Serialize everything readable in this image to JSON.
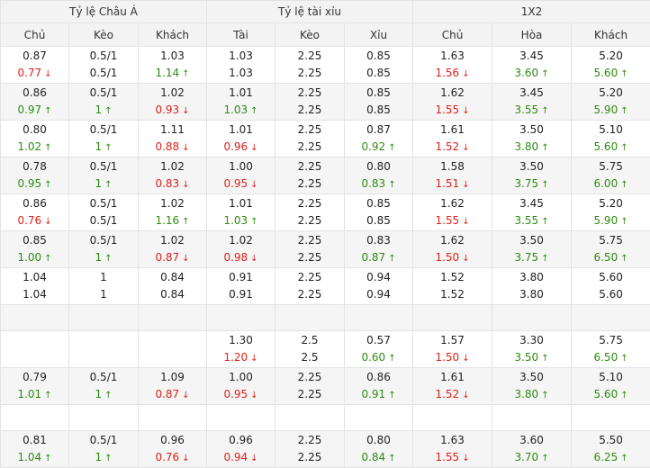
{
  "groups": [
    "Tỷ lệ Châu Á",
    "Tỷ lệ tài xỉu",
    "1X2"
  ],
  "columns": [
    "Chủ",
    "Kèo",
    "Khách",
    "Tài",
    "Kèo",
    "Xỉu",
    "Chủ",
    "Hòa",
    "Khách"
  ],
  "arrows": {
    "up": "↑",
    "down": "↓"
  },
  "colors": {
    "up": "#2e8b10",
    "down": "#e0211b"
  },
  "rows": [
    {
      "type": "data",
      "cells": [
        [
          {
            "v": "0.87"
          },
          {
            "v": "0.77",
            "d": "down"
          }
        ],
        [
          {
            "v": "0.5/1"
          },
          {
            "v": "0.5/1"
          }
        ],
        [
          {
            "v": "1.03"
          },
          {
            "v": "1.14",
            "d": "up"
          }
        ],
        [
          {
            "v": "1.03"
          },
          {
            "v": "1.03"
          }
        ],
        [
          {
            "v": "2.25"
          },
          {
            "v": "2.25"
          }
        ],
        [
          {
            "v": "0.85"
          },
          {
            "v": "0.85"
          }
        ],
        [
          {
            "v": "1.63"
          },
          {
            "v": "1.56",
            "d": "down"
          }
        ],
        [
          {
            "v": "3.45"
          },
          {
            "v": "3.60",
            "d": "up"
          }
        ],
        [
          {
            "v": "5.20"
          },
          {
            "v": "5.60",
            "d": "up"
          }
        ]
      ]
    },
    {
      "type": "data",
      "cells": [
        [
          {
            "v": "0.86"
          },
          {
            "v": "0.97",
            "d": "up"
          }
        ],
        [
          {
            "v": "0.5/1"
          },
          {
            "v": "1",
            "d": "up"
          }
        ],
        [
          {
            "v": "1.02"
          },
          {
            "v": "0.93",
            "d": "down"
          }
        ],
        [
          {
            "v": "1.01"
          },
          {
            "v": "1.03",
            "d": "up"
          }
        ],
        [
          {
            "v": "2.25"
          },
          {
            "v": "2.25"
          }
        ],
        [
          {
            "v": "0.85"
          },
          {
            "v": "0.85"
          }
        ],
        [
          {
            "v": "1.62"
          },
          {
            "v": "1.55",
            "d": "down"
          }
        ],
        [
          {
            "v": "3.45"
          },
          {
            "v": "3.55",
            "d": "up"
          }
        ],
        [
          {
            "v": "5.20"
          },
          {
            "v": "5.90",
            "d": "up"
          }
        ]
      ]
    },
    {
      "type": "data",
      "cells": [
        [
          {
            "v": "0.80"
          },
          {
            "v": "1.02",
            "d": "up"
          }
        ],
        [
          {
            "v": "0.5/1"
          },
          {
            "v": "1",
            "d": "up"
          }
        ],
        [
          {
            "v": "1.11"
          },
          {
            "v": "0.88",
            "d": "down"
          }
        ],
        [
          {
            "v": "1.01"
          },
          {
            "v": "0.96",
            "d": "down"
          }
        ],
        [
          {
            "v": "2.25"
          },
          {
            "v": "2.25"
          }
        ],
        [
          {
            "v": "0.87"
          },
          {
            "v": "0.92",
            "d": "up"
          }
        ],
        [
          {
            "v": "1.61"
          },
          {
            "v": "1.52",
            "d": "down"
          }
        ],
        [
          {
            "v": "3.50"
          },
          {
            "v": "3.80",
            "d": "up"
          }
        ],
        [
          {
            "v": "5.10"
          },
          {
            "v": "5.60",
            "d": "up"
          }
        ]
      ]
    },
    {
      "type": "data",
      "cells": [
        [
          {
            "v": "0.78"
          },
          {
            "v": "0.95",
            "d": "up"
          }
        ],
        [
          {
            "v": "0.5/1"
          },
          {
            "v": "1",
            "d": "up"
          }
        ],
        [
          {
            "v": "1.02"
          },
          {
            "v": "0.83",
            "d": "down"
          }
        ],
        [
          {
            "v": "1.00"
          },
          {
            "v": "0.95",
            "d": "down"
          }
        ],
        [
          {
            "v": "2.25"
          },
          {
            "v": "2.25"
          }
        ],
        [
          {
            "v": "0.80"
          },
          {
            "v": "0.83",
            "d": "up"
          }
        ],
        [
          {
            "v": "1.58"
          },
          {
            "v": "1.51",
            "d": "down"
          }
        ],
        [
          {
            "v": "3.50"
          },
          {
            "v": "3.75",
            "d": "up"
          }
        ],
        [
          {
            "v": "5.75"
          },
          {
            "v": "6.00",
            "d": "up"
          }
        ]
      ]
    },
    {
      "type": "data",
      "cells": [
        [
          {
            "v": "0.86"
          },
          {
            "v": "0.76",
            "d": "down"
          }
        ],
        [
          {
            "v": "0.5/1"
          },
          {
            "v": "0.5/1"
          }
        ],
        [
          {
            "v": "1.02"
          },
          {
            "v": "1.16",
            "d": "up"
          }
        ],
        [
          {
            "v": "1.01"
          },
          {
            "v": "1.03",
            "d": "up"
          }
        ],
        [
          {
            "v": "2.25"
          },
          {
            "v": "2.25"
          }
        ],
        [
          {
            "v": "0.85"
          },
          {
            "v": "0.85"
          }
        ],
        [
          {
            "v": "1.62"
          },
          {
            "v": "1.55",
            "d": "down"
          }
        ],
        [
          {
            "v": "3.45"
          },
          {
            "v": "3.55",
            "d": "up"
          }
        ],
        [
          {
            "v": "5.20"
          },
          {
            "v": "5.90",
            "d": "up"
          }
        ]
      ]
    },
    {
      "type": "data",
      "cells": [
        [
          {
            "v": "0.85"
          },
          {
            "v": "1.00",
            "d": "up"
          }
        ],
        [
          {
            "v": "0.5/1"
          },
          {
            "v": "1",
            "d": "up"
          }
        ],
        [
          {
            "v": "1.02"
          },
          {
            "v": "0.87",
            "d": "down"
          }
        ],
        [
          {
            "v": "1.02"
          },
          {
            "v": "0.98",
            "d": "down"
          }
        ],
        [
          {
            "v": "2.25"
          },
          {
            "v": "2.25"
          }
        ],
        [
          {
            "v": "0.83"
          },
          {
            "v": "0.87",
            "d": "up"
          }
        ],
        [
          {
            "v": "1.62"
          },
          {
            "v": "1.50",
            "d": "down"
          }
        ],
        [
          {
            "v": "3.50"
          },
          {
            "v": "3.75",
            "d": "up"
          }
        ],
        [
          {
            "v": "5.75"
          },
          {
            "v": "6.50",
            "d": "up"
          }
        ]
      ]
    },
    {
      "type": "data",
      "cells": [
        [
          {
            "v": "1.04"
          },
          {
            "v": "1.04"
          }
        ],
        [
          {
            "v": "1"
          },
          {
            "v": "1"
          }
        ],
        [
          {
            "v": "0.84"
          },
          {
            "v": "0.84"
          }
        ],
        [
          {
            "v": "0.91"
          },
          {
            "v": "0.91"
          }
        ],
        [
          {
            "v": "2.25"
          },
          {
            "v": "2.25"
          }
        ],
        [
          {
            "v": "0.94"
          },
          {
            "v": "0.94"
          }
        ],
        [
          {
            "v": "1.52"
          },
          {
            "v": "1.52"
          }
        ],
        [
          {
            "v": "3.80"
          },
          {
            "v": "3.80"
          }
        ],
        [
          {
            "v": "5.60"
          },
          {
            "v": "5.60"
          }
        ]
      ]
    },
    {
      "type": "empty"
    },
    {
      "type": "data",
      "cells": [
        [],
        [],
        [],
        [
          {
            "v": "1.30"
          },
          {
            "v": "1.20",
            "d": "down"
          }
        ],
        [
          {
            "v": "2.5"
          },
          {
            "v": "2.5"
          }
        ],
        [
          {
            "v": "0.57"
          },
          {
            "v": "0.60",
            "d": "up"
          }
        ],
        [
          {
            "v": "1.57"
          },
          {
            "v": "1.50",
            "d": "down"
          }
        ],
        [
          {
            "v": "3.30"
          },
          {
            "v": "3.50",
            "d": "up"
          }
        ],
        [
          {
            "v": "5.75"
          },
          {
            "v": "6.50",
            "d": "up"
          }
        ]
      ]
    },
    {
      "type": "data",
      "cells": [
        [
          {
            "v": "0.79"
          },
          {
            "v": "1.01",
            "d": "up"
          }
        ],
        [
          {
            "v": "0.5/1"
          },
          {
            "v": "1",
            "d": "up"
          }
        ],
        [
          {
            "v": "1.09"
          },
          {
            "v": "0.87",
            "d": "down"
          }
        ],
        [
          {
            "v": "1.00"
          },
          {
            "v": "0.95",
            "d": "down"
          }
        ],
        [
          {
            "v": "2.25"
          },
          {
            "v": "2.25"
          }
        ],
        [
          {
            "v": "0.86"
          },
          {
            "v": "0.91",
            "d": "up"
          }
        ],
        [
          {
            "v": "1.61"
          },
          {
            "v": "1.52",
            "d": "down"
          }
        ],
        [
          {
            "v": "3.50"
          },
          {
            "v": "3.80",
            "d": "up"
          }
        ],
        [
          {
            "v": "5.10"
          },
          {
            "v": "5.60",
            "d": "up"
          }
        ]
      ]
    },
    {
      "type": "empty"
    },
    {
      "type": "data",
      "cells": [
        [
          {
            "v": "0.81"
          },
          {
            "v": "1.04",
            "d": "up"
          }
        ],
        [
          {
            "v": "0.5/1"
          },
          {
            "v": "1",
            "d": "up"
          }
        ],
        [
          {
            "v": "0.96"
          },
          {
            "v": "0.76",
            "d": "down"
          }
        ],
        [
          {
            "v": "0.96"
          },
          {
            "v": "0.94",
            "d": "down"
          }
        ],
        [
          {
            "v": "2.25"
          },
          {
            "v": "2.25"
          }
        ],
        [
          {
            "v": "0.80"
          },
          {
            "v": "0.84",
            "d": "up"
          }
        ],
        [
          {
            "v": "1.63"
          },
          {
            "v": "1.55",
            "d": "down"
          }
        ],
        [
          {
            "v": "3.60"
          },
          {
            "v": "3.70",
            "d": "up"
          }
        ],
        [
          {
            "v": "5.50"
          },
          {
            "v": "6.25",
            "d": "up"
          }
        ]
      ]
    }
  ]
}
